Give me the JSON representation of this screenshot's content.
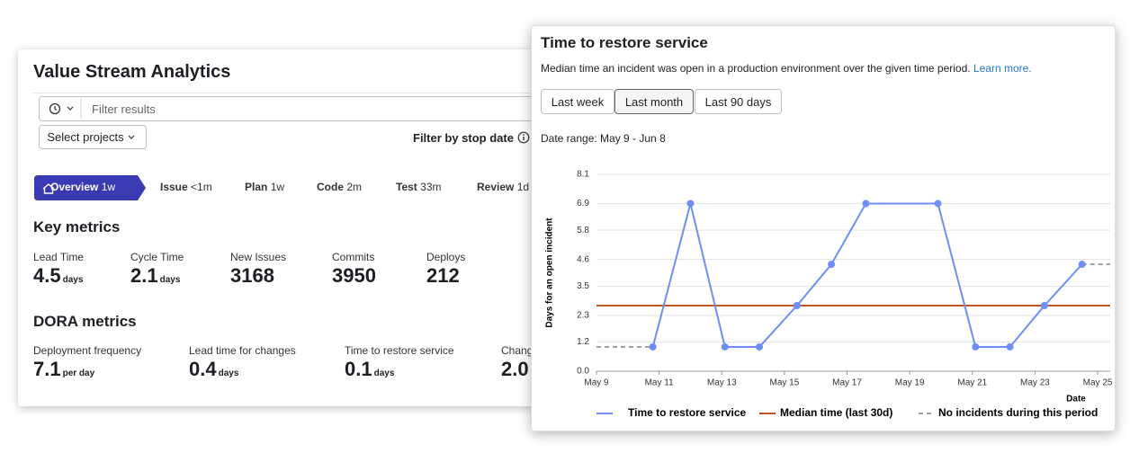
{
  "left_panel": {
    "title": "Value Stream Analytics",
    "filter_placeholder": "Filter results",
    "project_button": "Select projects",
    "stop_date_filter": "Filter by stop date",
    "stages": [
      {
        "name": "Overview",
        "duration": "1w"
      },
      {
        "name": "Issue",
        "duration": "<1m"
      },
      {
        "name": "Plan",
        "duration": "1w"
      },
      {
        "name": "Code",
        "duration": "2m"
      },
      {
        "name": "Test",
        "duration": "33m"
      },
      {
        "name": "Review",
        "duration": "1d"
      }
    ],
    "key_metrics": {
      "heading": "Key metrics",
      "items": [
        {
          "label": "Lead Time",
          "value": "4.5",
          "unit": "days"
        },
        {
          "label": "Cycle Time",
          "value": "2.1",
          "unit": "days"
        },
        {
          "label": "New Issues",
          "value": "3168"
        },
        {
          "label": "Commits",
          "value": "3950"
        },
        {
          "label": "Deploys",
          "value": "212"
        }
      ]
    },
    "dora_metrics": {
      "heading": "DORA metrics",
      "items": [
        {
          "label": "Deployment frequency",
          "value": "7.1",
          "unit": "per day"
        },
        {
          "label": "Lead time for changes",
          "value": "0.4",
          "unit": "days"
        },
        {
          "label": "Time to restore service",
          "value": "0.1",
          "unit": "days"
        },
        {
          "label": "Chang",
          "value": "2.0"
        }
      ]
    }
  },
  "chart_panel": {
    "title": "Time to restore service",
    "description": "Median time an incident was open in a production environment over the given time period.",
    "link": "Learn more.",
    "buttons": [
      "Last week",
      "Last month",
      "Last 90 days"
    ],
    "date_range": "Date range: May 9 - Jun 8"
  },
  "chart_data": {
    "type": "line",
    "x_label": "Date",
    "y_label": "Days for an open incident",
    "xlim": [
      9,
      25.4
    ],
    "xticks": [
      {
        "value": 9,
        "label": "May 9"
      },
      {
        "value": 11,
        "label": "May 11"
      },
      {
        "value": 13,
        "label": "May 13"
      },
      {
        "value": 15,
        "label": "May 15"
      },
      {
        "value": 17,
        "label": "May 17"
      },
      {
        "value": 19,
        "label": "May 19"
      },
      {
        "value": 21,
        "label": "May 21"
      },
      {
        "value": 23,
        "label": "May 23"
      },
      {
        "value": 25,
        "label": "May 25"
      }
    ],
    "ylim": [
      0,
      8.1
    ],
    "yticks": [
      {
        "value": 0,
        "label": "0.0"
      },
      1.2,
      2.3,
      3.5,
      4.6,
      5.8,
      6.9,
      8.1
    ],
    "grid": true,
    "series": [
      {
        "name": "Time to restore service",
        "color": "#6e8ef7",
        "line_style": "solid",
        "markers": true,
        "x": [
          10.8,
          12.0,
          13.1,
          14.2,
          15.4,
          16.5,
          17.6,
          19.9,
          21.1,
          22.2,
          23.3,
          24.5
        ],
        "values": [
          1.0,
          6.9,
          1.0,
          1.0,
          2.7,
          4.4,
          6.9,
          6.9,
          1.0,
          1.0,
          2.7,
          4.4
        ]
      },
      {
        "name": "Median time (last 30d)",
        "color": "#c0541e",
        "line_style": "solid",
        "markers": false,
        "x": [
          9,
          25.4
        ],
        "values": [
          2.7,
          2.7
        ]
      },
      {
        "name": "No incidents during this period",
        "color": "#a0a0a0",
        "line_style": "dashed",
        "markers": false,
        "x": [
          9,
          10.8,
          null,
          17.6,
          19.9,
          null,
          24.5,
          25.4
        ],
        "values": [
          1.0,
          1.0,
          null,
          6.9,
          6.9,
          null,
          4.4,
          4.4
        ]
      }
    ]
  }
}
